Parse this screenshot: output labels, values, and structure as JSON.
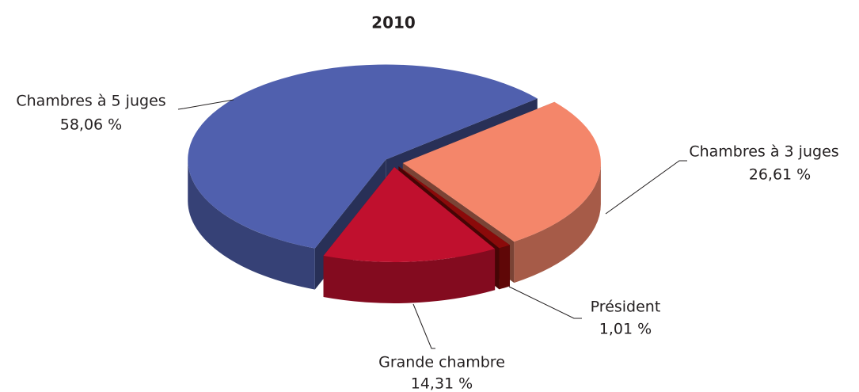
{
  "chart_data": {
    "type": "pie",
    "title": "2010",
    "categories": [
      "Chambres à 3 juges",
      "Président",
      "Grande chambre",
      "Chambres à 5 juges"
    ],
    "values": [
      26.61,
      1.01,
      14.31,
      58.06
    ],
    "value_labels": [
      "26,61 %",
      "1,01 %",
      "14,31 %",
      "58,06 %"
    ],
    "colors": [
      "#f4866a",
      "#8b0a0a",
      "#c0102e",
      "#5060ae"
    ]
  }
}
